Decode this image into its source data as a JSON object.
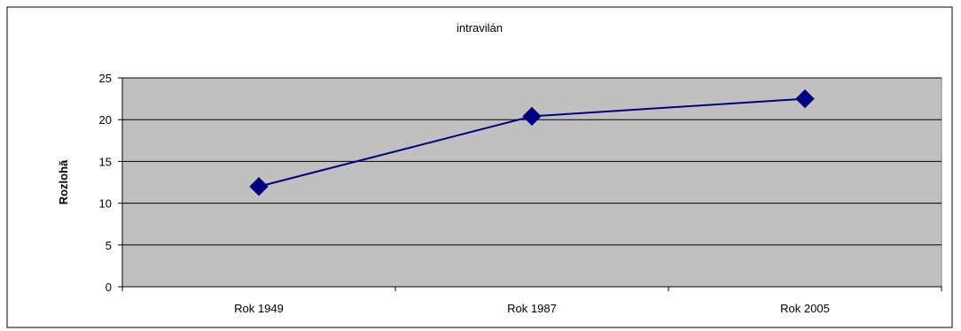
{
  "chart_data": {
    "type": "line",
    "title": "intravilán",
    "xlabel": "",
    "ylabel": "Rozlohă",
    "categories": [
      "Rok 1949",
      "Rok 1987",
      "Rok 2005"
    ],
    "series": [
      {
        "values": [
          12,
          20.4,
          22.5
        ]
      }
    ],
    "ylim": [
      0,
      25
    ],
    "yticks": [
      0,
      5,
      10,
      15,
      20,
      25
    ],
    "grid": true,
    "plot_background": "#c0c0c0",
    "line_color": "#000080",
    "marker": "diamond"
  }
}
